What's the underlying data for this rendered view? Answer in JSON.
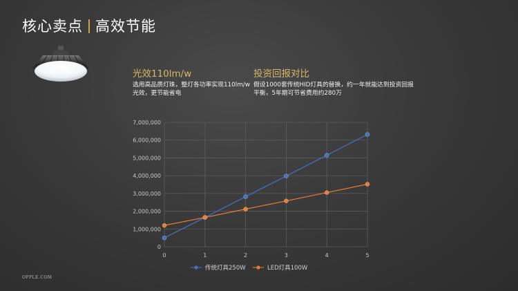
{
  "header": {
    "title_main": "核心卖点",
    "title_sub": "高效节能"
  },
  "features": [
    {
      "title": "光效110lm/w",
      "body": "选用高品质灯珠，整灯各功率实现110lm/w光效，更节能省电"
    },
    {
      "title": "投资回报对比",
      "body": "假设1000套传统HID灯具的替换，约一年就能达到投资回报平衡，5年期可节省费用约280万"
    }
  ],
  "footer": {
    "logo_text": "OPPLE.COM"
  },
  "colors": {
    "accent": "#c9a64b",
    "series_blue": "#4472c4",
    "series_orange": "#ed7d31"
  },
  "chart_data": {
    "type": "line",
    "x": [
      0,
      1,
      2,
      3,
      4,
      5
    ],
    "xlim": [
      0,
      5
    ],
    "ylim": [
      0,
      7000000
    ],
    "y_ticks": [
      "7,000,000",
      "6,000,000",
      "5,000,000",
      "4,000,000",
      "3,000,000",
      "2,000,000",
      "1,000,000",
      "0"
    ],
    "x_ticks": [
      "0",
      "1",
      "2",
      "3",
      "4",
      "5"
    ],
    "grid": true,
    "legend": "bottom",
    "series": [
      {
        "name": "传统灯具250W",
        "color": "#4472c4",
        "values": [
          500000,
          1650000,
          2820000,
          3980000,
          5150000,
          6320000
        ]
      },
      {
        "name": "LED灯具100W",
        "color": "#ed7d31",
        "values": [
          1200000,
          1650000,
          2120000,
          2580000,
          3050000,
          3520000
        ]
      }
    ]
  }
}
